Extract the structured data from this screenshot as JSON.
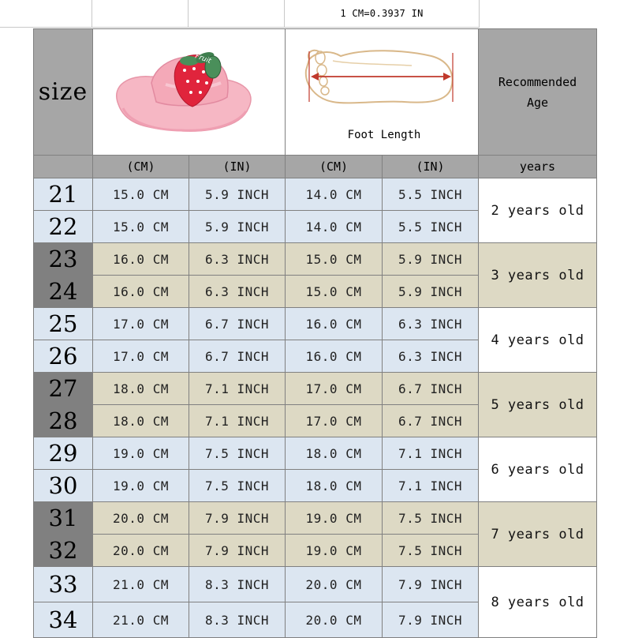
{
  "conversion": "1 CM=0.3937 IN",
  "header": {
    "size_label": "size",
    "foot_length_label": "Foot Length",
    "recommended_age": [
      "Recommended",
      "Age"
    ],
    "units": [
      "(CM)",
      "(IN)",
      "(CM)",
      "(IN)",
      "years"
    ]
  },
  "rows": [
    {
      "size": "21",
      "sole_cm": "15.0 CM",
      "sole_in": "5.9 INCH",
      "foot_cm": "14.0 CM",
      "foot_in": "5.5 INCH"
    },
    {
      "size": "22",
      "sole_cm": "15.0 CM",
      "sole_in": "5.9 INCH",
      "foot_cm": "14.0 CM",
      "foot_in": "5.5 INCH"
    },
    {
      "size": "23",
      "sole_cm": "16.0 CM",
      "sole_in": "6.3 INCH",
      "foot_cm": "15.0 CM",
      "foot_in": "5.9 INCH"
    },
    {
      "size": "24",
      "sole_cm": "16.0 CM",
      "sole_in": "6.3 INCH",
      "foot_cm": "15.0 CM",
      "foot_in": "5.9 INCH"
    },
    {
      "size": "25",
      "sole_cm": "17.0 CM",
      "sole_in": "6.7 INCH",
      "foot_cm": "16.0 CM",
      "foot_in": "6.3 INCH"
    },
    {
      "size": "26",
      "sole_cm": "17.0 CM",
      "sole_in": "6.7 INCH",
      "foot_cm": "16.0 CM",
      "foot_in": "6.3 INCH"
    },
    {
      "size": "27",
      "sole_cm": "18.0 CM",
      "sole_in": "7.1 INCH",
      "foot_cm": "17.0 CM",
      "foot_in": "6.7 INCH"
    },
    {
      "size": "28",
      "sole_cm": "18.0 CM",
      "sole_in": "7.1 INCH",
      "foot_cm": "17.0 CM",
      "foot_in": "6.7 INCH"
    },
    {
      "size": "29",
      "sole_cm": "19.0 CM",
      "sole_in": "7.5 INCH",
      "foot_cm": "18.0 CM",
      "foot_in": "7.1 INCH"
    },
    {
      "size": "30",
      "sole_cm": "19.0 CM",
      "sole_in": "7.5 INCH",
      "foot_cm": "18.0 CM",
      "foot_in": "7.1 INCH"
    },
    {
      "size": "31",
      "sole_cm": "20.0 CM",
      "sole_in": "7.9 INCH",
      "foot_cm": "19.0 CM",
      "foot_in": "7.5 INCH"
    },
    {
      "size": "32",
      "sole_cm": "20.0 CM",
      "sole_in": "7.9 INCH",
      "foot_cm": "19.0 CM",
      "foot_in": "7.5 INCH"
    },
    {
      "size": "33",
      "sole_cm": "21.0 CM",
      "sole_in": "8.3 INCH",
      "foot_cm": "20.0 CM",
      "foot_in": "7.9 INCH"
    },
    {
      "size": "34",
      "sole_cm": "21.0 CM",
      "sole_in": "8.3 INCH",
      "foot_cm": "20.0 CM",
      "foot_in": "7.9 INCH"
    }
  ],
  "ages": [
    "2 years old",
    "3 years old",
    "4 years old",
    "5 years old",
    "6 years old",
    "7 years old",
    "8 years old"
  ],
  "slipper_logo_text": "Fruit",
  "colors": {
    "header_gray": "#a6a6a6",
    "blue_band": "#dce6f1",
    "tan_band": "#ddd9c4",
    "dark_size": "#808080",
    "slipper_pink": "#f4a9b8",
    "strawberry_red": "#e0243c",
    "leaf_green": "#4a8f5a",
    "arrow_red": "#c0392b"
  }
}
